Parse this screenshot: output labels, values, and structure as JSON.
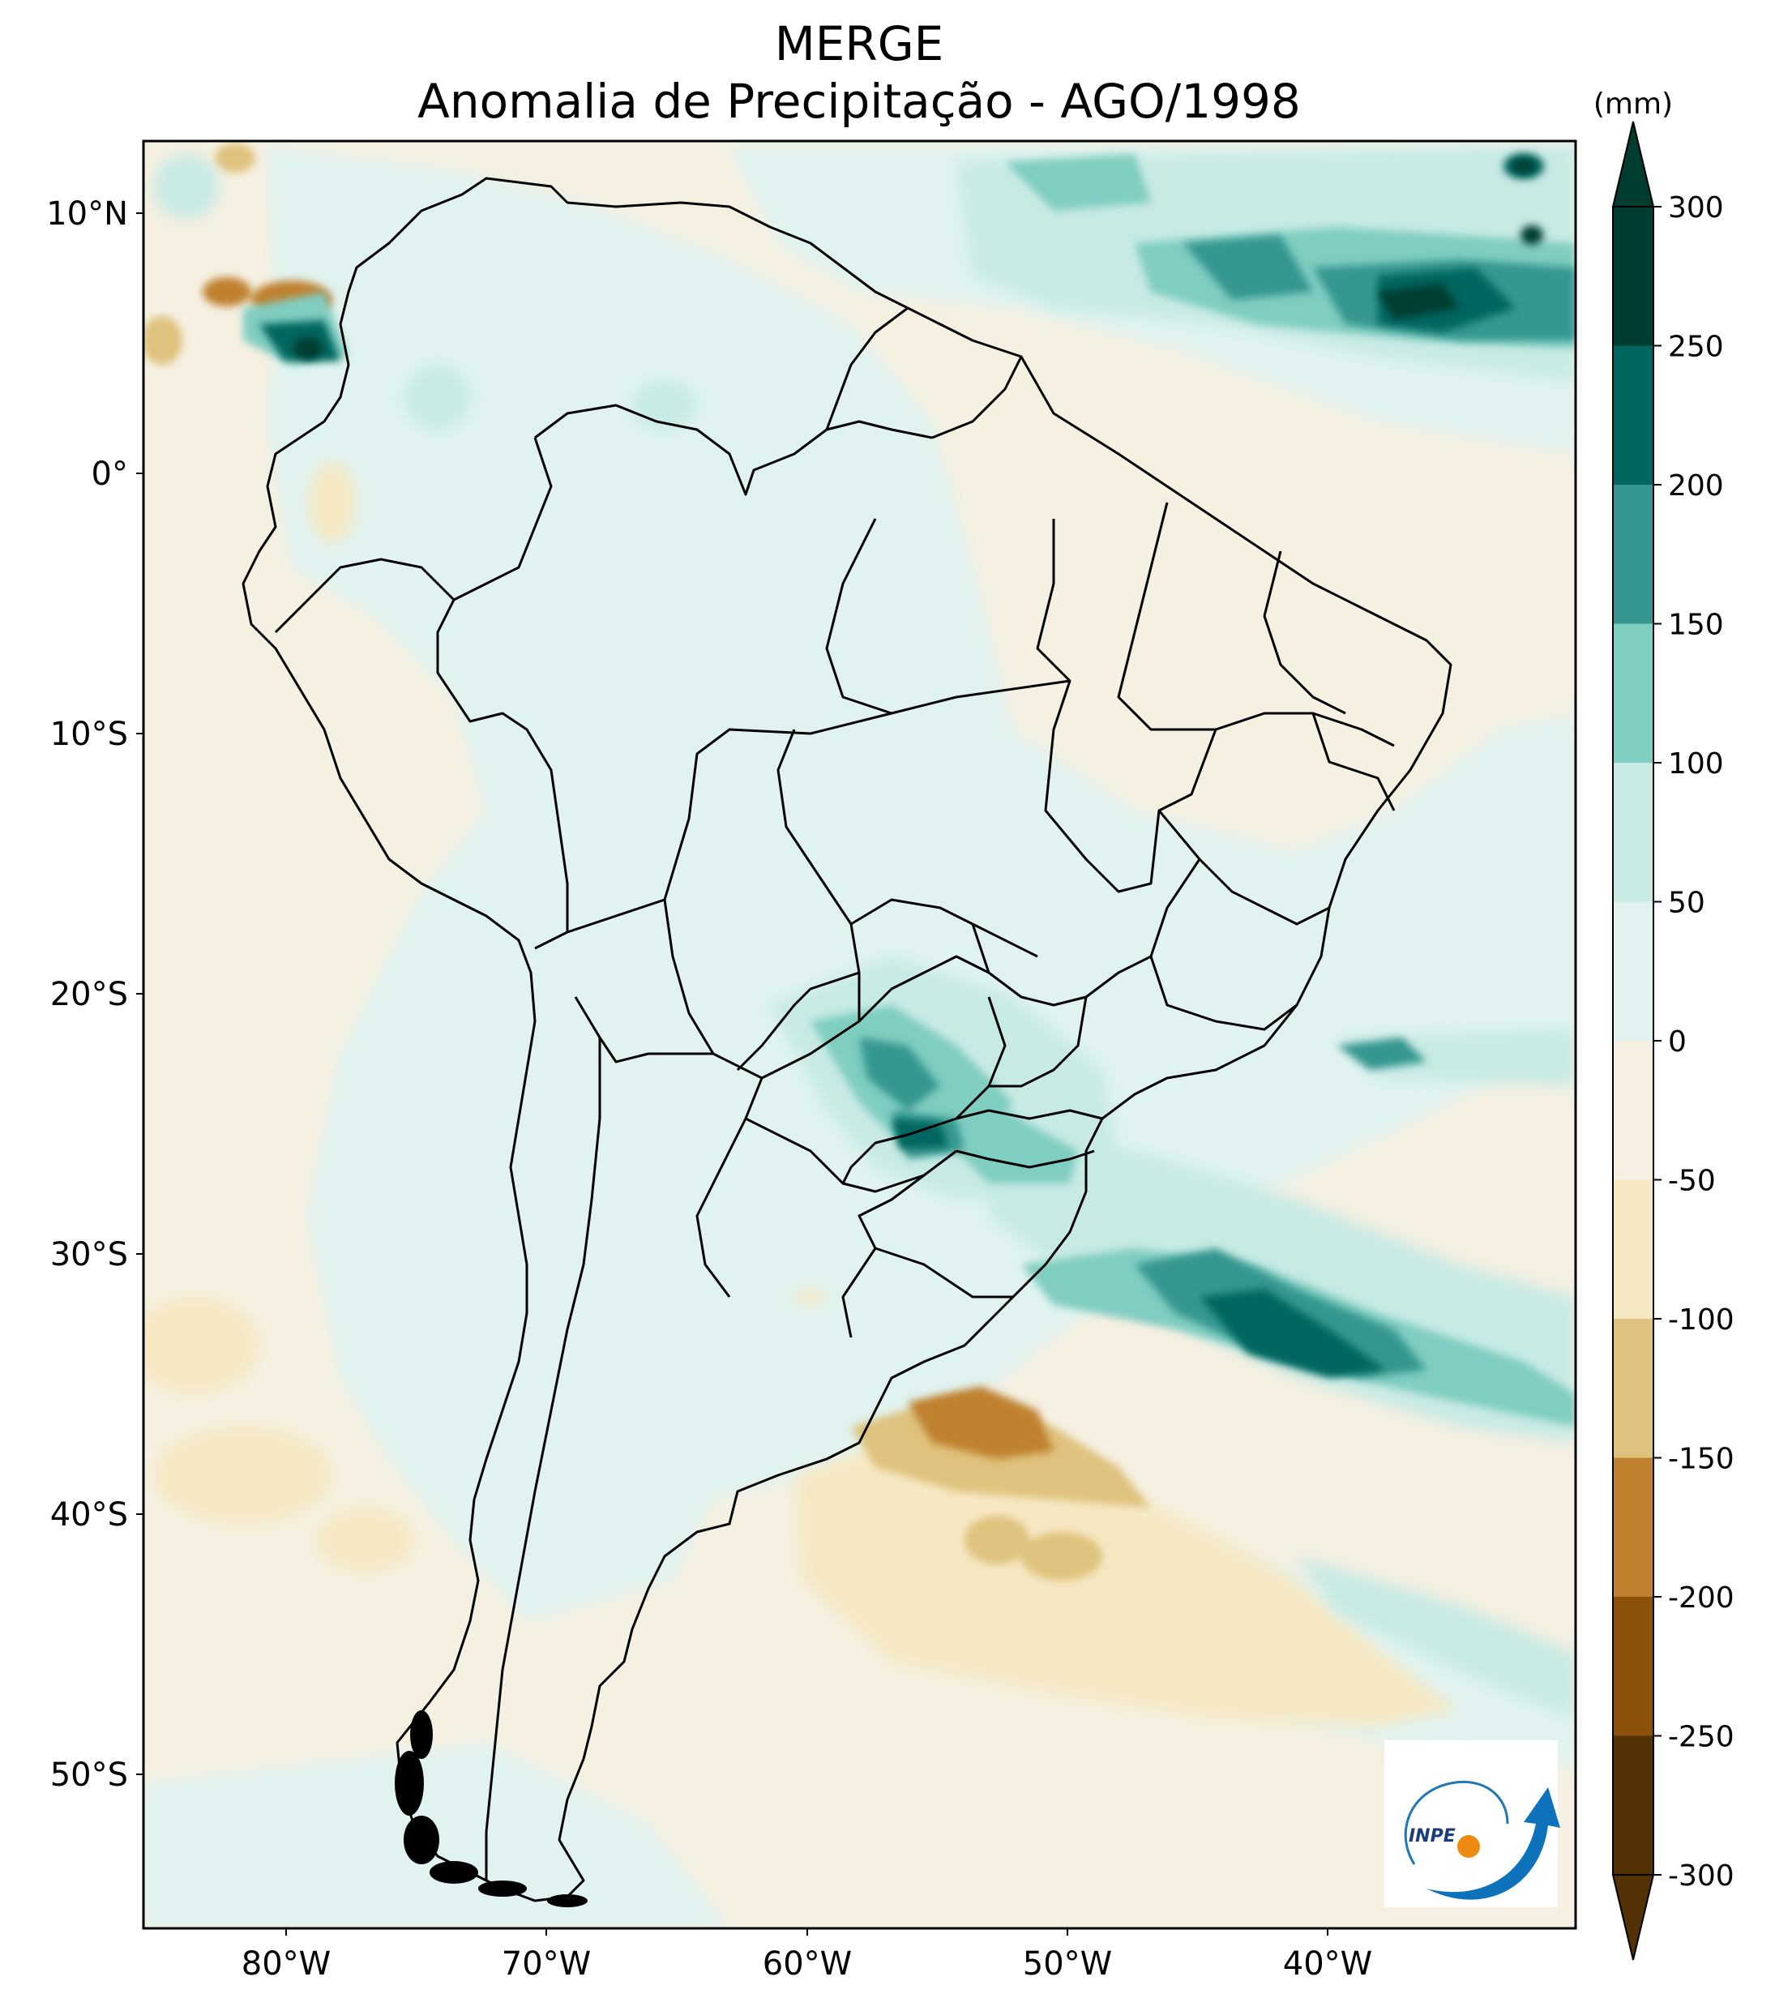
{
  "titles": {
    "line1": "MERGE",
    "line2": "Anomalia de Precipitação - AGO/1998"
  },
  "map": {
    "region": "South America",
    "lon_range": [
      -85,
      -30
    ],
    "lat_range": [
      -56,
      13
    ],
    "lon_ticks": [
      "80°W",
      "70°W",
      "60°W",
      "50°W",
      "40°W"
    ],
    "lat_ticks": [
      "10°N",
      "0°",
      "10°S",
      "20°S",
      "30°S",
      "40°S",
      "50°S"
    ]
  },
  "colorbar": {
    "unit": "(mm)",
    "levels": [
      "300",
      "250",
      "200",
      "150",
      "100",
      "50",
      "0",
      "-50",
      "-100",
      "-150",
      "-200",
      "-250",
      "-300"
    ],
    "colors": [
      "#003c30",
      "#01665e",
      "#35978f",
      "#80cdc1",
      "#c7eae5",
      "#e0f3f0",
      "#f5f0e1",
      "#f6e8c3",
      "#dfc27d",
      "#bf812d",
      "#8c510a",
      "#543005"
    ]
  },
  "logo": {
    "text": "INPE",
    "icon": "inpe-logo"
  }
}
